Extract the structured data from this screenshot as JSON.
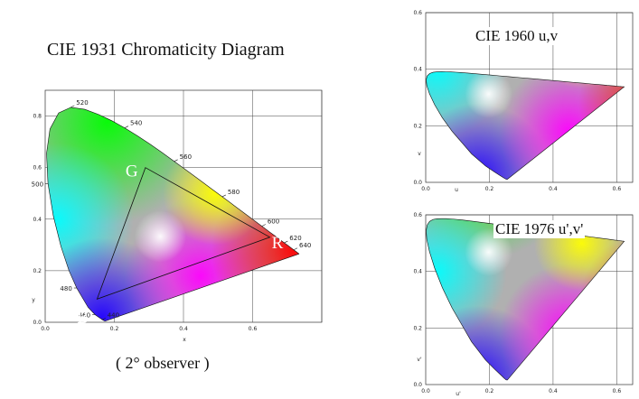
{
  "titles": {
    "main": "CIE 1931 Chromaticity Diagram",
    "observer": "( 2° observer )",
    "uv": "CIE 1960 u,v",
    "uv_prime": "CIE 1976 u',v'"
  },
  "chart_data": [
    {
      "type": "chromaticity-diagram",
      "title": "CIE 1931 Chromaticity Diagram",
      "xlabel": "x",
      "ylabel": "y",
      "xlim": [
        0,
        0.8
      ],
      "ylim": [
        0,
        0.9
      ],
      "x_ticks": [
        "0.0",
        "0.2",
        "0.4",
        "0.6"
      ],
      "y_ticks": [
        "0.0",
        "0.2",
        "0.4",
        "0.6",
        "0.8"
      ],
      "wavelength_labels": [
        {
          "label": "520",
          "x": 0.074,
          "y": 0.834
        },
        {
          "label": "540",
          "x": 0.23,
          "y": 0.754
        },
        {
          "label": "560",
          "x": 0.373,
          "y": 0.624
        },
        {
          "label": "580",
          "x": 0.512,
          "y": 0.487
        },
        {
          "label": "600",
          "x": 0.627,
          "y": 0.373
        },
        {
          "label": "620",
          "x": 0.691,
          "y": 0.308
        },
        {
          "label": "640",
          "x": 0.719,
          "y": 0.281
        },
        {
          "label": "500",
          "x": 0.008,
          "y": 0.538
        },
        {
          "label": "480",
          "x": 0.091,
          "y": 0.133
        },
        {
          "label": "460",
          "x": 0.144,
          "y": 0.03
        },
        {
          "label": "440",
          "x": 0.164,
          "y": 0.009
        }
      ],
      "gamut": [
        {
          "label": "G",
          "x": 0.29,
          "y": 0.6
        },
        {
          "label": "R",
          "x": 0.65,
          "y": 0.33
        },
        {
          "label": "B",
          "x": 0.15,
          "y": 0.09
        }
      ],
      "grid": true
    },
    {
      "type": "chromaticity-diagram",
      "title": "CIE 1960 u,v",
      "xlabel": "u",
      "ylabel": "v",
      "xlim": [
        0,
        0.65
      ],
      "ylim": [
        0,
        0.6
      ],
      "x_ticks": [
        "0.0",
        "0.2",
        "0.4",
        "0.6"
      ],
      "y_ticks": [
        "0.0",
        "0.2",
        "0.4",
        "0.6"
      ],
      "grid": true
    },
    {
      "type": "chromaticity-diagram",
      "title": "CIE 1976 u',v'",
      "xlabel": "u'",
      "ylabel": "v'",
      "xlim": [
        0,
        0.65
      ],
      "ylim": [
        0,
        0.6
      ],
      "x_ticks": [
        "0.0",
        "0.2",
        "0.4",
        "0.6"
      ],
      "y_ticks": [
        "0.0",
        "0.2",
        "0.4",
        "0.6"
      ],
      "grid": true
    }
  ],
  "colors": {
    "green": "#00ff00",
    "yellow": "#ffff00",
    "red": "#ff0000",
    "magenta": "#ff00ff",
    "blue": "#2000ff",
    "cyan": "#00ffff",
    "white": "#ffffff"
  }
}
